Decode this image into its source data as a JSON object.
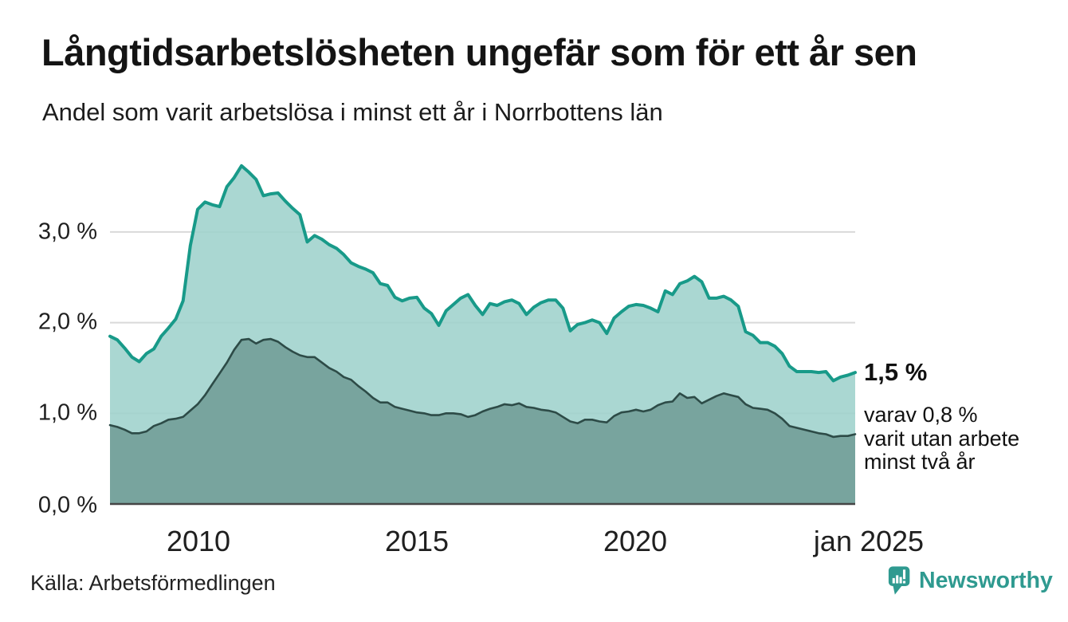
{
  "header": {
    "title": "Långtidsarbetslösheten ungefär som för ett år sen",
    "subtitle": "Andel som varit arbetslösa i minst ett år i Norrbottens län"
  },
  "chart_data": {
    "type": "area",
    "title": "Långtidsarbetslösheten ungefär som för ett år sen",
    "subtitle": "Andel som varit arbetslösa i minst ett år i Norrbottens län",
    "unit": "%",
    "region": "Norrbottens län",
    "x_axis": {
      "labels": [
        "2010",
        "2015",
        "2020",
        "jan 2025"
      ],
      "start": "jan 2008",
      "end": "jan 2025",
      "point_interval": "2 månader"
    },
    "y_axis": {
      "labels": [
        "0,0 %",
        "1,0 %",
        "2,0 %",
        "3,0 %"
      ],
      "values": [
        0,
        1,
        2,
        3
      ],
      "ylim": [
        0,
        3.9
      ],
      "grid": true
    },
    "series": [
      {
        "name": "Andel arbetslösa minst ett år",
        "end_value_label": "1,5 %",
        "line_color": "#189a89",
        "fill_color": "#9ed2cc",
        "values": [
          1.85,
          1.81,
          1.72,
          1.62,
          1.57,
          1.66,
          1.71,
          1.85,
          1.94,
          2.04,
          2.24,
          2.85,
          3.25,
          3.33,
          3.3,
          3.28,
          3.5,
          3.6,
          3.73,
          3.66,
          3.58,
          3.4,
          3.42,
          3.43,
          3.34,
          3.26,
          3.19,
          2.89,
          2.96,
          2.92,
          2.86,
          2.82,
          2.75,
          2.66,
          2.62,
          2.59,
          2.55,
          2.43,
          2.41,
          2.28,
          2.24,
          2.27,
          2.28,
          2.16,
          2.1,
          1.97,
          2.13,
          2.2,
          2.27,
          2.31,
          2.19,
          2.09,
          2.21,
          2.19,
          2.23,
          2.25,
          2.21,
          2.09,
          2.17,
          2.22,
          2.25,
          2.25,
          2.16,
          1.91,
          1.98,
          2.0,
          2.03,
          2.0,
          1.88,
          2.05,
          2.12,
          2.18,
          2.2,
          2.19,
          2.16,
          2.12,
          2.35,
          2.31,
          2.43,
          2.46,
          2.51,
          2.45,
          2.27,
          2.27,
          2.29,
          2.25,
          2.18,
          1.9,
          1.86,
          1.78,
          1.78,
          1.74,
          1.66,
          1.52,
          1.46,
          1.46,
          1.46,
          1.45,
          1.46,
          1.36,
          1.4,
          1.42,
          1.45
        ]
      },
      {
        "name": "Andel arbetslösa minst två år",
        "end_value_label": "0,8 %",
        "line_color": "#2d4b47",
        "fill_color": "#78a49e",
        "values": [
          0.87,
          0.85,
          0.82,
          0.78,
          0.78,
          0.8,
          0.86,
          0.89,
          0.93,
          0.94,
          0.96,
          1.03,
          1.1,
          1.2,
          1.32,
          1.44,
          1.56,
          1.7,
          1.81,
          1.82,
          1.77,
          1.81,
          1.82,
          1.79,
          1.73,
          1.68,
          1.64,
          1.62,
          1.62,
          1.56,
          1.5,
          1.46,
          1.4,
          1.37,
          1.3,
          1.24,
          1.17,
          1.12,
          1.12,
          1.07,
          1.05,
          1.03,
          1.01,
          1.0,
          0.98,
          0.98,
          1.0,
          1.0,
          0.99,
          0.96,
          0.98,
          1.02,
          1.05,
          1.07,
          1.1,
          1.09,
          1.11,
          1.07,
          1.06,
          1.04,
          1.03,
          1.01,
          0.96,
          0.91,
          0.89,
          0.93,
          0.93,
          0.91,
          0.9,
          0.97,
          1.01,
          1.02,
          1.04,
          1.02,
          1.04,
          1.09,
          1.12,
          1.13,
          1.22,
          1.17,
          1.18,
          1.11,
          1.15,
          1.19,
          1.22,
          1.2,
          1.18,
          1.1,
          1.06,
          1.05,
          1.04,
          1.0,
          0.94,
          0.86,
          0.84,
          0.82,
          0.8,
          0.78,
          0.77,
          0.74,
          0.75,
          0.75,
          0.77
        ]
      }
    ],
    "annotations": {
      "primary": "1,5 %",
      "secondary": "varav 0,8 %\nvarit utan arbete\nminst två år"
    },
    "grid_color": "#d9d9d9",
    "axis_color": "#454545"
  },
  "footer": {
    "source": "Källa: Arbetsförmedlingen",
    "brand": "Newsworthy",
    "brand_color": "#2f9a90"
  }
}
